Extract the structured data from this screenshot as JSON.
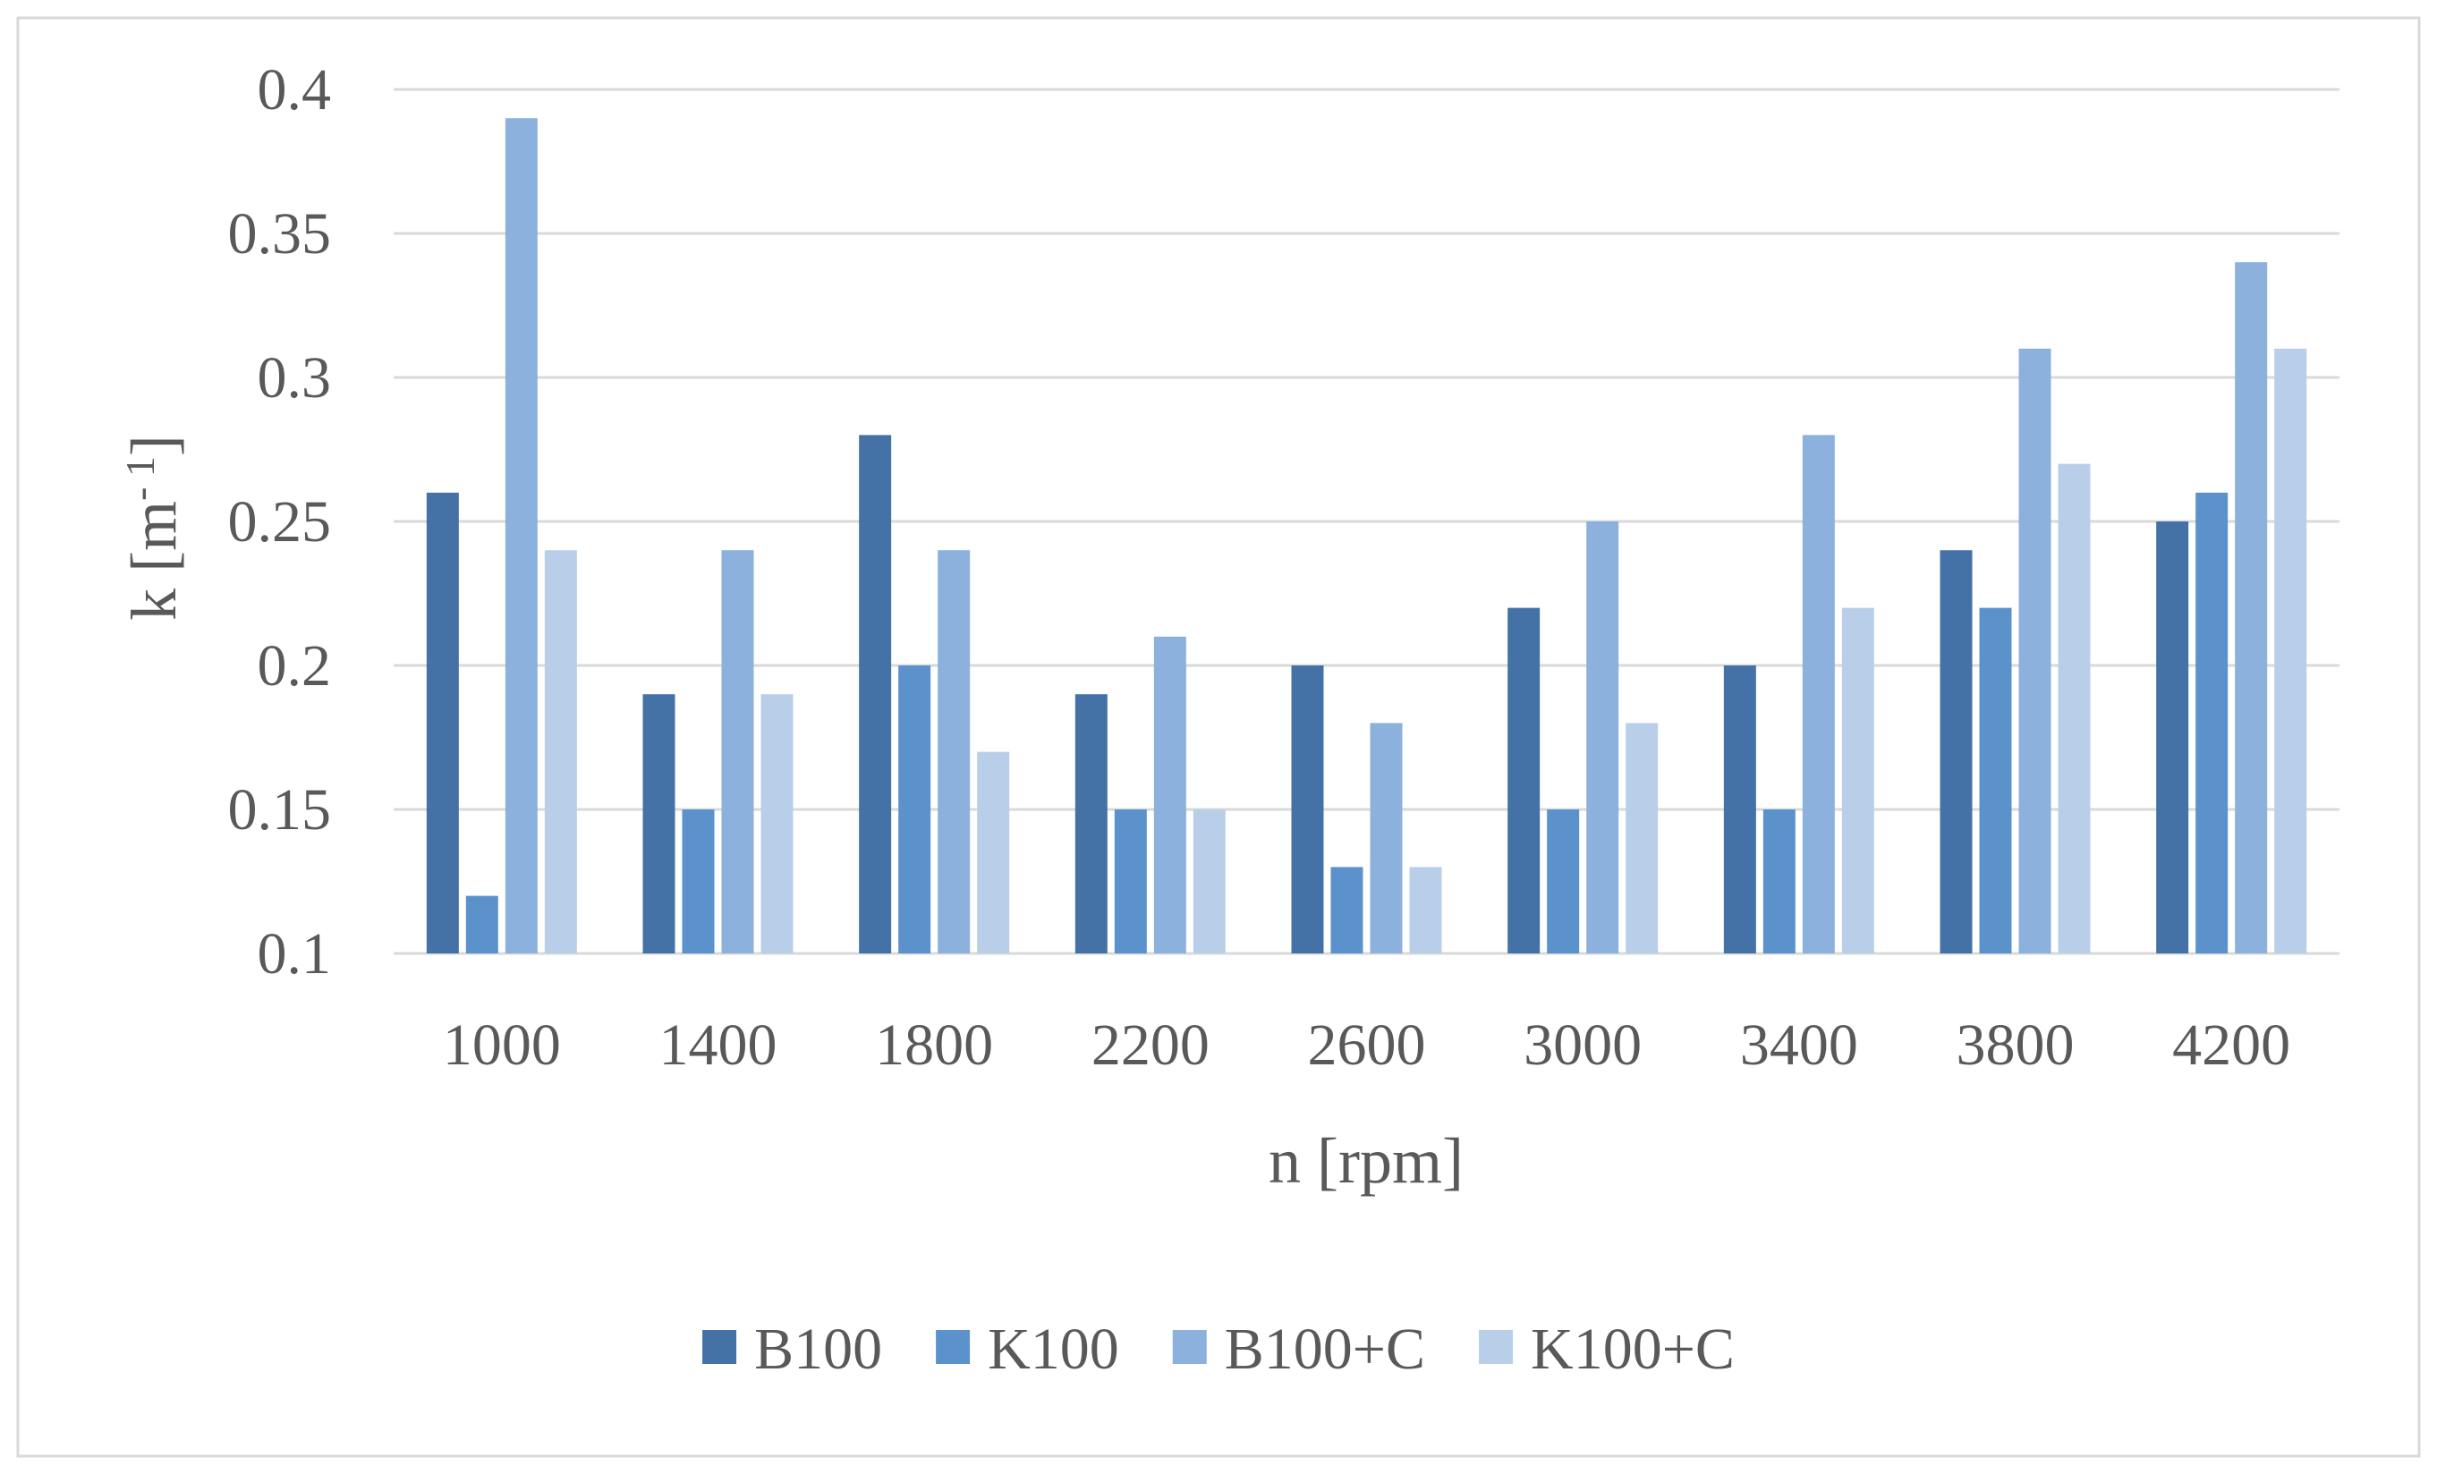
{
  "chart_data": {
    "type": "bar",
    "xlabel": "n [rpm]",
    "ylabel": "k [m",
    "ylabel_superscript": "- 1",
    "ylabel_close": "]",
    "ylim": [
      0.1,
      0.4
    ],
    "yticks": [
      0.1,
      0.15,
      0.2,
      0.25,
      0.3,
      0.35,
      0.4
    ],
    "ytick_labels": [
      "0.1",
      "0.15",
      "0.2",
      "0.25",
      "0.3",
      "0.35",
      "0.4"
    ],
    "categories": [
      "1000",
      "1400",
      "1800",
      "2200",
      "2600",
      "3000",
      "3400",
      "3800",
      "4200"
    ],
    "grid": "horizontal",
    "legend_position": "bottom",
    "series": [
      {
        "name": "B100",
        "color": "#4472a6",
        "values": [
          0.26,
          0.19,
          0.28,
          0.19,
          0.2,
          0.22,
          0.2,
          0.24,
          0.25
        ]
      },
      {
        "name": "K100",
        "color": "#5b92cc",
        "values": [
          0.12,
          0.15,
          0.2,
          0.15,
          0.13,
          0.15,
          0.15,
          0.22,
          0.26
        ]
      },
      {
        "name": "B100+C",
        "color": "#8cb1dc",
        "values": [
          0.39,
          0.24,
          0.24,
          0.21,
          0.18,
          0.25,
          0.28,
          0.31,
          0.34
        ]
      },
      {
        "name": "K100+C",
        "color": "#b9cfe9",
        "values": [
          0.24,
          0.19,
          0.17,
          0.15,
          0.13,
          0.18,
          0.22,
          0.27,
          0.31
        ]
      }
    ]
  }
}
